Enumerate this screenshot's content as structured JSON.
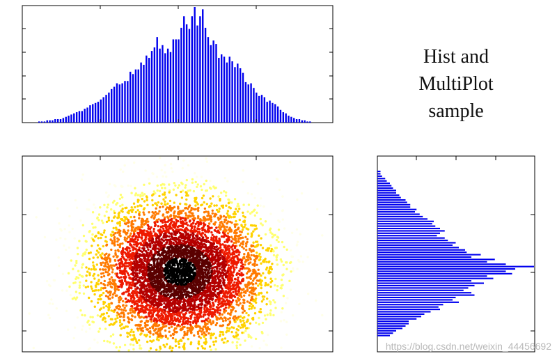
{
  "title": {
    "line1": "Hist and",
    "line2": "MultiPlot",
    "line3": "sample"
  },
  "watermark": "https://blog.csdn.net/weixin_44456692",
  "colors": {
    "bar": "#0000ee",
    "axis": "#000000",
    "colormap": [
      "#000000",
      "#5a0000",
      "#b40000",
      "#ee1a00",
      "#ff7a00",
      "#ffd200",
      "#ffff70",
      "#ffffe8"
    ]
  },
  "chart_data": [
    {
      "type": "bar",
      "panel": "top-histogram",
      "description_of_values": "relative bar heights (0-1) of the x-marginal histogram",
      "values": [
        0.01,
        0.01,
        0.01,
        0.02,
        0.02,
        0.02,
        0.03,
        0.03,
        0.03,
        0.04,
        0.05,
        0.06,
        0.07,
        0.08,
        0.09,
        0.1,
        0.1,
        0.12,
        0.13,
        0.15,
        0.16,
        0.17,
        0.18,
        0.2,
        0.22,
        0.24,
        0.26,
        0.29,
        0.31,
        0.34,
        0.33,
        0.34,
        0.36,
        0.36,
        0.44,
        0.42,
        0.46,
        0.46,
        0.52,
        0.5,
        0.58,
        0.56,
        0.62,
        0.65,
        0.74,
        0.64,
        0.67,
        0.6,
        0.64,
        0.61,
        0.72,
        0.72,
        0.72,
        0.82,
        0.92,
        0.85,
        0.81,
        0.92,
        1.0,
        0.84,
        0.92,
        0.98,
        0.82,
        0.74,
        0.67,
        0.71,
        0.68,
        0.56,
        0.59,
        0.57,
        0.52,
        0.57,
        0.53,
        0.48,
        0.51,
        0.47,
        0.43,
        0.35,
        0.33,
        0.34,
        0.3,
        0.26,
        0.23,
        0.24,
        0.22,
        0.18,
        0.19,
        0.17,
        0.16,
        0.14,
        0.11,
        0.09,
        0.08,
        0.06,
        0.05,
        0.04,
        0.03,
        0.03,
        0.02,
        0.02,
        0.01,
        0.01
      ]
    },
    {
      "type": "scatter",
      "panel": "center-scatter",
      "points": 6000,
      "distribution": "2D gaussian, color by distance from center (hot colormap)"
    },
    {
      "type": "bar",
      "panel": "right-histogram",
      "orientation": "horizontal",
      "description_of_values": "relative bar lengths (0-1) of the y-marginal histogram, top to bottom",
      "values": [
        0.02,
        0.02,
        0.03,
        0.05,
        0.06,
        0.08,
        0.09,
        0.1,
        0.12,
        0.12,
        0.14,
        0.15,
        0.18,
        0.19,
        0.21,
        0.21,
        0.25,
        0.24,
        0.27,
        0.29,
        0.32,
        0.36,
        0.35,
        0.37,
        0.4,
        0.43,
        0.4,
        0.38,
        0.43,
        0.45,
        0.5,
        0.48,
        0.52,
        0.56,
        0.57,
        0.66,
        0.6,
        0.75,
        0.7,
        0.82,
        1.0,
        0.88,
        0.82,
        0.86,
        0.7,
        0.74,
        0.6,
        0.68,
        0.62,
        0.58,
        0.55,
        0.6,
        0.62,
        0.5,
        0.48,
        0.52,
        0.42,
        0.39,
        0.4,
        0.34,
        0.3,
        0.28,
        0.25,
        0.2,
        0.2,
        0.18,
        0.16,
        0.12,
        0.1,
        0.08
      ]
    }
  ]
}
